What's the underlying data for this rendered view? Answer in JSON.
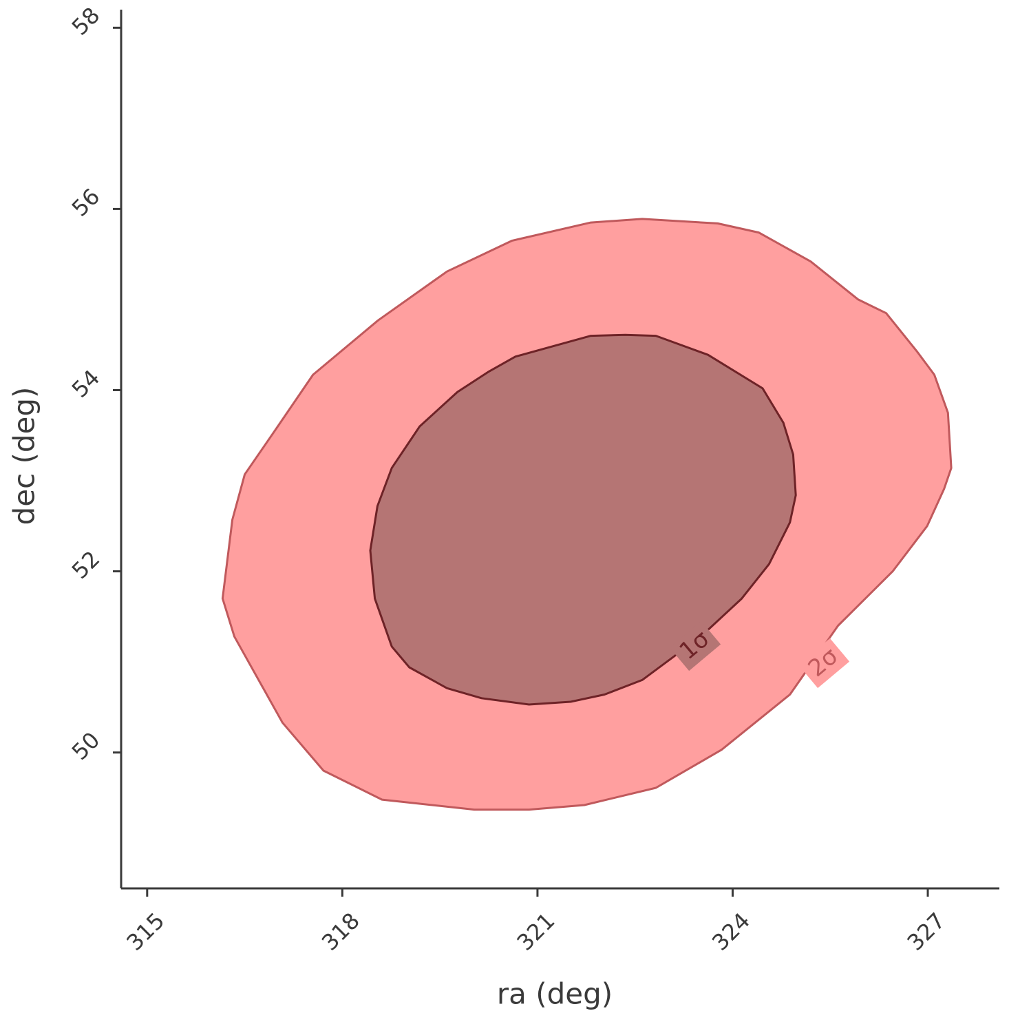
{
  "chart_data": {
    "type": "contour",
    "x_label": "ra (deg)",
    "y_label": "dec (deg)",
    "xlim": [
      314.6,
      328.1
    ],
    "xticks": [
      315,
      318,
      321,
      324,
      327
    ],
    "ylim": [
      48.5,
      58.2
    ],
    "yticks": [
      50,
      52,
      54,
      56,
      58
    ],
    "series": [
      {
        "name": "2σ",
        "color": "#ff9f9f",
        "line_color": "#c0595c",
        "x": [
          316.16,
          316.31,
          316.5,
          316.97,
          317.55,
          318.55,
          319.61,
          320.61,
          321.82,
          322.61,
          323.77,
          324.4,
          325.2,
          325.93,
          326.36,
          326.83,
          327.1,
          327.31,
          327.36,
          327.25,
          326.99,
          326.46,
          325.62,
          324.88,
          323.83,
          322.82,
          321.72,
          320.87,
          320.03,
          318.61,
          317.71,
          317.08,
          316.34
        ],
        "y": [
          51.7,
          52.57,
          53.07,
          53.56,
          54.17,
          54.77,
          55.31,
          55.65,
          55.85,
          55.89,
          55.84,
          55.74,
          55.42,
          55.0,
          54.85,
          54.43,
          54.17,
          53.75,
          53.14,
          52.91,
          52.5,
          52.0,
          51.4,
          50.64,
          50.03,
          49.61,
          49.42,
          49.37,
          49.37,
          49.48,
          49.8,
          50.33,
          51.28
        ]
      },
      {
        "name": "1σ",
        "color": "#b57574",
        "line_color": "#6e2327",
        "x": [
          318.43,
          318.54,
          318.76,
          319.19,
          319.77,
          320.24,
          320.66,
          321.82,
          322.35,
          322.82,
          323.62,
          324.46,
          324.78,
          324.93,
          324.97,
          324.88,
          324.56,
          324.14,
          323.51,
          322.61,
          322.03,
          321.51,
          320.87,
          320.14,
          319.61,
          319.03,
          318.76,
          318.5
        ],
        "y": [
          52.23,
          52.72,
          53.14,
          53.6,
          53.98,
          54.2,
          54.37,
          54.6,
          54.61,
          54.6,
          54.39,
          54.02,
          53.64,
          53.29,
          52.84,
          52.54,
          52.08,
          51.7,
          51.28,
          50.8,
          50.64,
          50.56,
          50.53,
          50.6,
          50.71,
          50.94,
          51.17,
          51.7
        ]
      }
    ]
  }
}
